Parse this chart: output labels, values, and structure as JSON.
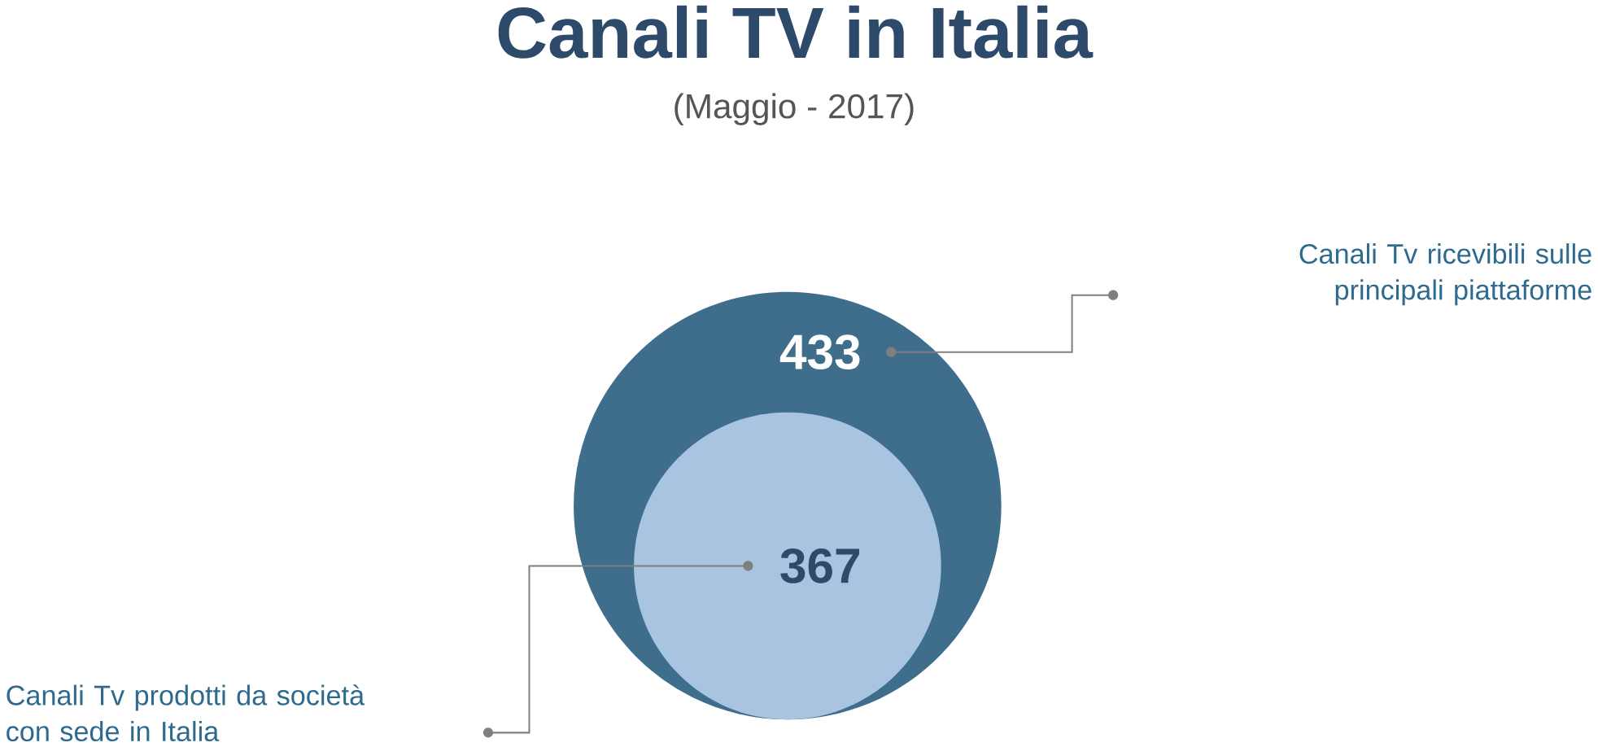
{
  "chart_data": {
    "type": "other",
    "title": "Canali TV in Italia",
    "subtitle": "(Maggio - 2017)",
    "categories": [
      "Canali Tv ricevibili sulle principali piattaforme",
      "Canali Tv prodotti da società con sede in Italia"
    ],
    "values": [
      433,
      367
    ],
    "colors": [
      "#3f6e8c",
      "#a9c4e0"
    ],
    "data_labels": true
  }
}
